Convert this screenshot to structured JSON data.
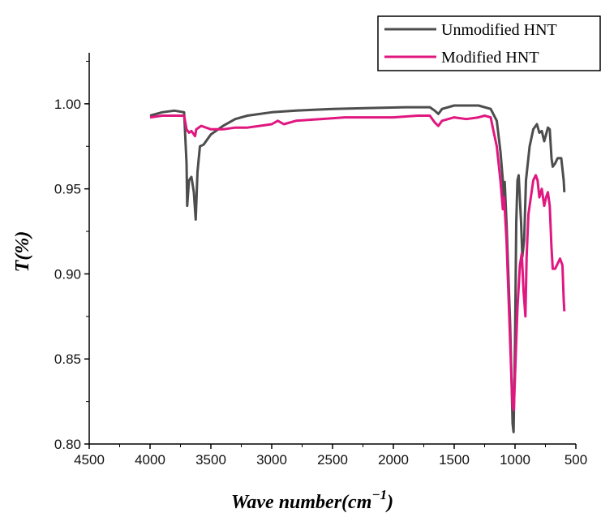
{
  "chart_data": {
    "type": "line",
    "xlabel": "Wave number(cm",
    "xlabel_sup": "−1",
    "xlabel_end": ")",
    "ylabel": "T(%)",
    "xlim": [
      4500,
      500
    ],
    "ylim": [
      0.8,
      1.03
    ],
    "x_ticks": [
      "4500",
      "4000",
      "3500",
      "3000",
      "2500",
      "2000",
      "1500",
      "1000",
      "500"
    ],
    "y_ticks": [
      "0.80",
      "0.85",
      "0.90",
      "0.95",
      "1.00"
    ],
    "grid": false,
    "legend_position": "top-right",
    "series": [
      {
        "name": "Unmodified HNT",
        "color": "#4d4d4d",
        "points": [
          [
            4000,
            0.993
          ],
          [
            3900,
            0.995
          ],
          [
            3800,
            0.996
          ],
          [
            3720,
            0.995
          ],
          [
            3700,
            0.965
          ],
          [
            3695,
            0.94
          ],
          [
            3680,
            0.955
          ],
          [
            3660,
            0.957
          ],
          [
            3640,
            0.948
          ],
          [
            3625,
            0.932
          ],
          [
            3610,
            0.96
          ],
          [
            3590,
            0.975
          ],
          [
            3560,
            0.976
          ],
          [
            3500,
            0.982
          ],
          [
            3400,
            0.987
          ],
          [
            3300,
            0.991
          ],
          [
            3200,
            0.993
          ],
          [
            3000,
            0.995
          ],
          [
            2800,
            0.996
          ],
          [
            2500,
            0.997
          ],
          [
            2200,
            0.9975
          ],
          [
            1900,
            0.998
          ],
          [
            1700,
            0.998
          ],
          [
            1660,
            0.996
          ],
          [
            1630,
            0.994
          ],
          [
            1600,
            0.997
          ],
          [
            1500,
            0.999
          ],
          [
            1400,
            0.999
          ],
          [
            1300,
            0.999
          ],
          [
            1200,
            0.997
          ],
          [
            1150,
            0.99
          ],
          [
            1120,
            0.972
          ],
          [
            1100,
            0.955
          ],
          [
            1092,
            0.945
          ],
          [
            1085,
            0.954
          ],
          [
            1070,
            0.93
          ],
          [
            1040,
            0.87
          ],
          [
            1020,
            0.812
          ],
          [
            1012,
            0.807
          ],
          [
            1000,
            0.86
          ],
          [
            990,
            0.93
          ],
          [
            980,
            0.955
          ],
          [
            970,
            0.958
          ],
          [
            950,
            0.93
          ],
          [
            940,
            0.91
          ],
          [
            925,
            0.92
          ],
          [
            910,
            0.955
          ],
          [
            880,
            0.975
          ],
          [
            850,
            0.985
          ],
          [
            820,
            0.988
          ],
          [
            800,
            0.983
          ],
          [
            780,
            0.984
          ],
          [
            760,
            0.978
          ],
          [
            745,
            0.982
          ],
          [
            730,
            0.986
          ],
          [
            715,
            0.985
          ],
          [
            700,
            0.968
          ],
          [
            690,
            0.963
          ],
          [
            670,
            0.965
          ],
          [
            650,
            0.968
          ],
          [
            620,
            0.968
          ],
          [
            600,
            0.955
          ],
          [
            595,
            0.948
          ]
        ]
      },
      {
        "name": "Modified HNT",
        "color": "#e0177f",
        "points": [
          [
            4000,
            0.992
          ],
          [
            3900,
            0.993
          ],
          [
            3800,
            0.993
          ],
          [
            3720,
            0.993
          ],
          [
            3700,
            0.985
          ],
          [
            3680,
            0.983
          ],
          [
            3660,
            0.984
          ],
          [
            3640,
            0.982
          ],
          [
            3630,
            0.981
          ],
          [
            3620,
            0.985
          ],
          [
            3580,
            0.987
          ],
          [
            3500,
            0.985
          ],
          [
            3400,
            0.985
          ],
          [
            3300,
            0.986
          ],
          [
            3200,
            0.986
          ],
          [
            3100,
            0.987
          ],
          [
            3000,
            0.988
          ],
          [
            2950,
            0.99
          ],
          [
            2900,
            0.988
          ],
          [
            2800,
            0.99
          ],
          [
            2600,
            0.991
          ],
          [
            2400,
            0.992
          ],
          [
            2200,
            0.992
          ],
          [
            2000,
            0.992
          ],
          [
            1800,
            0.993
          ],
          [
            1700,
            0.993
          ],
          [
            1660,
            0.989
          ],
          [
            1630,
            0.987
          ],
          [
            1600,
            0.99
          ],
          [
            1500,
            0.992
          ],
          [
            1400,
            0.991
          ],
          [
            1300,
            0.992
          ],
          [
            1250,
            0.993
          ],
          [
            1200,
            0.992
          ],
          [
            1180,
            0.985
          ],
          [
            1150,
            0.975
          ],
          [
            1120,
            0.955
          ],
          [
            1100,
            0.938
          ],
          [
            1090,
            0.945
          ],
          [
            1070,
            0.92
          ],
          [
            1050,
            0.88
          ],
          [
            1030,
            0.84
          ],
          [
            1020,
            0.822
          ],
          [
            1010,
            0.82
          ],
          [
            1000,
            0.84
          ],
          [
            980,
            0.88
          ],
          [
            960,
            0.905
          ],
          [
            945,
            0.912
          ],
          [
            930,
            0.89
          ],
          [
            915,
            0.875
          ],
          [
            905,
            0.91
          ],
          [
            890,
            0.935
          ],
          [
            870,
            0.945
          ],
          [
            850,
            0.955
          ],
          [
            830,
            0.958
          ],
          [
            815,
            0.955
          ],
          [
            800,
            0.945
          ],
          [
            780,
            0.95
          ],
          [
            760,
            0.94
          ],
          [
            745,
            0.945
          ],
          [
            730,
            0.948
          ],
          [
            715,
            0.94
          ],
          [
            700,
            0.915
          ],
          [
            690,
            0.903
          ],
          [
            670,
            0.903
          ],
          [
            650,
            0.906
          ],
          [
            630,
            0.909
          ],
          [
            610,
            0.905
          ],
          [
            600,
            0.885
          ],
          [
            595,
            0.878
          ]
        ]
      }
    ]
  }
}
